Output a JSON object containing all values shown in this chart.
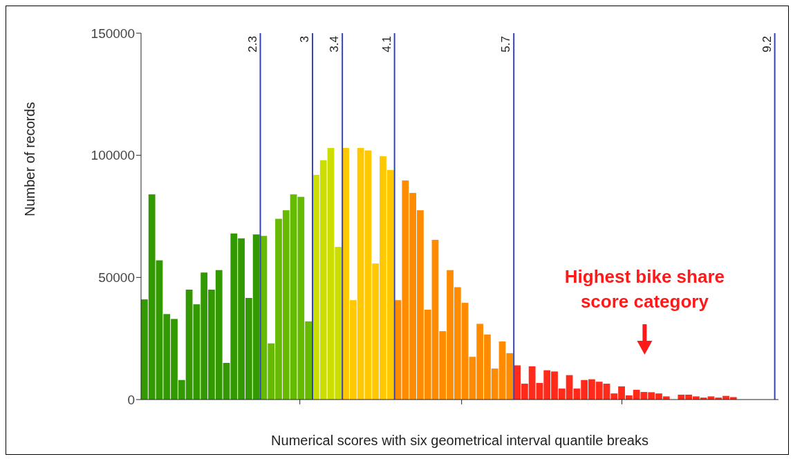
{
  "chart_data": {
    "type": "histogram",
    "xlabel": "Numerical scores with six geometrical interval quantile breaks",
    "ylabel": "Number of records",
    "bins": [
      0.7,
      0.8,
      0.9,
      1.0,
      1.1,
      1.2,
      1.3,
      1.4,
      1.5,
      1.6,
      1.7,
      1.8,
      1.9,
      2.0,
      2.1,
      2.2,
      2.3,
      2.4,
      2.5,
      2.6,
      2.7,
      2.8,
      2.9,
      3.0,
      3.1,
      3.2,
      3.3,
      3.4,
      3.5,
      3.6,
      3.7,
      3.8,
      3.9,
      4.0,
      4.1,
      4.2,
      4.3,
      4.4,
      4.5,
      4.6,
      4.7,
      4.8,
      4.9,
      5.0,
      5.1,
      5.2,
      5.3,
      5.4,
      5.5,
      5.6,
      5.7,
      5.8,
      5.9,
      6.0,
      6.1,
      6.2,
      6.3,
      6.4,
      6.5,
      6.6,
      6.7,
      6.8,
      6.9,
      7.0,
      7.1,
      7.2,
      7.3,
      7.4,
      7.5,
      7.6,
      7.7,
      7.8,
      7.9,
      8.0,
      8.1,
      8.2,
      8.3,
      8.4,
      8.5,
      8.6,
      8.7
    ],
    "values": [
      41000,
      84000,
      57000,
      35000,
      33000,
      8000,
      45000,
      39000,
      52000,
      45000,
      53000,
      15000,
      68000,
      66000,
      41600,
      67600,
      67000,
      23000,
      74000,
      77500,
      84000,
      83000,
      32000,
      92000,
      98000,
      103000,
      62500,
      103000,
      40700,
      103000,
      102000,
      55700,
      99600,
      94000,
      40700,
      89700,
      84600,
      77500,
      36800,
      65400,
      28000,
      53000,
      46000,
      39600,
      17500,
      31000,
      26600,
      12700,
      23800,
      19000,
      14000,
      6500,
      13600,
      6800,
      12000,
      11500,
      4500,
      10000,
      4500,
      8000,
      8300,
      7300,
      6500,
      2500,
      5400,
      1700,
      4000,
      3100,
      3000,
      2500,
      1300,
      0,
      2000,
      2000,
      1300,
      800,
      1300,
      800,
      1500,
      1000
    ],
    "colors": [
      "#339900",
      "#339900",
      "#339900",
      "#339900",
      "#339900",
      "#339900",
      "#339900",
      "#339900",
      "#339900",
      "#339900",
      "#339900",
      "#339900",
      "#339900",
      "#339900",
      "#339900",
      "#339900",
      "#66bb00",
      "#66bb00",
      "#66bb00",
      "#66bb00",
      "#66bb00",
      "#66bb00",
      "#66bb00",
      "#ccdd00",
      "#ccdd00",
      "#ccdd00",
      "#ccdd00",
      "#ffc800",
      "#ffc800",
      "#ffc800",
      "#ffc800",
      "#ffc800",
      "#ffc800",
      "#ffc800",
      "#ff8c00",
      "#ff8c00",
      "#ff8c00",
      "#ff8c00",
      "#ff8c00",
      "#ff8c00",
      "#ff8c00",
      "#ff8c00",
      "#ff8c00",
      "#ff8c00",
      "#ff8c00",
      "#ff8c00",
      "#ff8c00",
      "#ff8c00",
      "#ff8c00",
      "#ff8c00",
      "#ff2a1a",
      "#ff2a1a",
      "#ff2a1a",
      "#ff2a1a",
      "#ff2a1a",
      "#ff2a1a",
      "#ff2a1a",
      "#ff2a1a",
      "#ff2a1a",
      "#ff2a1a",
      "#ff2a1a",
      "#ff2a1a",
      "#ff2a1a",
      "#ff2a1a",
      "#ff2a1a",
      "#ff2a1a",
      "#ff2a1a",
      "#ff2a1a",
      "#ff2a1a",
      "#ff2a1a",
      "#ff2a1a",
      "#ff2a1a",
      "#ff2a1a",
      "#ff2a1a",
      "#ff2a1a",
      "#ff2a1a",
      "#ff2a1a",
      "#ff2a1a",
      "#ff2a1a",
      "#ff2a1a"
    ],
    "xlim": [
      0.7,
      9.25
    ],
    "xticks": [
      {
        "value": 2.83,
        "label": null
      },
      {
        "value": 5.0,
        "label": null
      },
      {
        "value": 7.15,
        "label": null
      }
    ],
    "ylim": [
      0,
      150000
    ],
    "yticks": [
      0,
      50000,
      100000,
      150000
    ],
    "tick_labels": "y",
    "grid": false,
    "legend": false,
    "ref_lines": [
      {
        "axis": "x",
        "value": 2.3,
        "label": "2.3",
        "color": "#3344aa"
      },
      {
        "axis": "x",
        "value": 3,
        "label": "3",
        "color": "#3344aa"
      },
      {
        "axis": "x",
        "value": 3.4,
        "label": "3.4",
        "color": "#3344aa"
      },
      {
        "axis": "x",
        "value": 4.1,
        "label": "4.1",
        "color": "#3344aa"
      },
      {
        "axis": "x",
        "value": 5.7,
        "label": "5.7",
        "color": "#3344aa"
      },
      {
        "axis": "x",
        "value": 9.2,
        "label": "9.2",
        "color": "#3344aa"
      }
    ],
    "annotations": [
      "Highest bike share score category"
    ]
  }
}
